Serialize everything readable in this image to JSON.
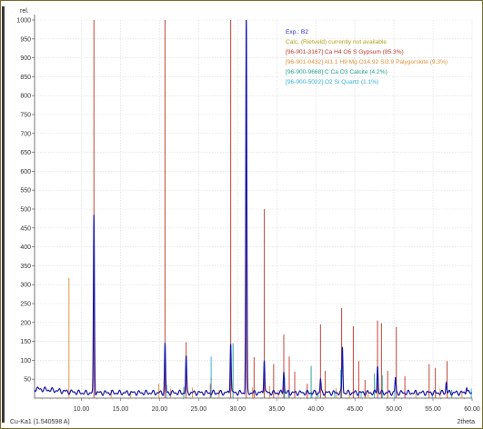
{
  "chart_data": {
    "type": "line",
    "ylabel": "rel.",
    "xlabel": "2theta",
    "footer": "Cu-Ka1 (1.540598 A)",
    "xlim": [
      4,
      60
    ],
    "ylim": [
      0,
      1000
    ],
    "x_ticks": [
      10,
      15,
      20,
      25,
      30,
      35,
      40,
      45,
      50,
      55,
      60
    ],
    "x_tick_labels": [
      "10.00",
      "15.00",
      "20.00",
      "25.00",
      "30.00",
      "35.00",
      "40.00",
      "45.00",
      "50.00",
      "55.00",
      "60.00"
    ],
    "y_ticks": [
      50,
      100,
      150,
      200,
      250,
      300,
      350,
      400,
      450,
      500,
      550,
      600,
      650,
      700,
      750,
      800,
      850,
      900,
      950,
      1000
    ],
    "y_tick_labels": [
      "50",
      "100",
      "150",
      "200",
      "250",
      "300",
      "350",
      "400",
      "450",
      "500",
      "550",
      "600",
      "650",
      "700",
      "750",
      "800",
      "850",
      "900",
      "950",
      "1000"
    ],
    "grid": true,
    "legend_position": "top-right",
    "legend": [
      {
        "text": "Exp.: B2",
        "color": "#2b2bd6"
      },
      {
        "text": "Calc. (Rietveld) currently not available",
        "color": "#b8a020"
      },
      {
        "text": "[96-901-3167] Ca H4 O6 S  Gypsum (85.3%)",
        "color": "#c0392b"
      },
      {
        "text": "[96-901-0432] Al1.1 H9 Mg O14.92 Si3.9  Palygorskite (9.3%)",
        "color": "#e0903a"
      },
      {
        "text": "[96-900-9668] C Ca O3  Calcite (4.2%)",
        "color": "#20a090"
      },
      {
        "text": "[96-900-5022] O2 Si  Quartz (1.1%)",
        "color": "#30b0d8"
      }
    ],
    "series": [
      {
        "name": "Exp.: B2",
        "color": "#1a1aa8",
        "peaks": [
          [
            11.6,
            468
          ],
          [
            20.7,
            128
          ],
          [
            23.4,
            95
          ],
          [
            29.1,
            135
          ],
          [
            31.1,
            1000
          ],
          [
            33.4,
            92
          ],
          [
            35.9,
            58
          ],
          [
            40.6,
            35
          ],
          [
            43.4,
            122
          ],
          [
            47.9,
            72
          ],
          [
            50.2,
            40
          ],
          [
            56.7,
            28
          ],
          [
            59.3,
            18
          ]
        ],
        "baseline": 14
      },
      {
        "name": "[96-901-3167] Ca H4 O6 S  Gypsum (85.3%)",
        "color": "#c0392b",
        "sticks": [
          [
            11.6,
            1000
          ],
          [
            20.7,
            1000
          ],
          [
            23.4,
            148
          ],
          [
            26.5,
            38
          ],
          [
            29.1,
            1000
          ],
          [
            31.1,
            1000
          ],
          [
            32.1,
            108
          ],
          [
            33.4,
            500
          ],
          [
            34.6,
            90
          ],
          [
            35.9,
            168
          ],
          [
            36.6,
            110
          ],
          [
            37.3,
            70
          ],
          [
            38.9,
            38
          ],
          [
            40.6,
            195
          ],
          [
            41.2,
            72
          ],
          [
            43.3,
            238
          ],
          [
            44.8,
            190
          ],
          [
            45.5,
            98
          ],
          [
            46.3,
            48
          ],
          [
            47.9,
            205
          ],
          [
            48.4,
            198
          ],
          [
            49.2,
            72
          ],
          [
            50.3,
            188
          ],
          [
            51.4,
            58
          ],
          [
            54.5,
            90
          ],
          [
            55.3,
            80
          ],
          [
            56.8,
            98
          ]
        ]
      },
      {
        "name": "[96-901-0432] Al1.1 H9 Mg O14.92 Si3.9  Palygorskite (9.3%)",
        "color": "#e0903a",
        "sticks": [
          [
            8.4,
            318
          ],
          [
            13.8,
            22
          ],
          [
            16.3,
            18
          ],
          [
            19.9,
            38
          ],
          [
            21.4,
            25
          ],
          [
            24.2,
            28
          ],
          [
            26.6,
            55
          ],
          [
            27.6,
            22
          ],
          [
            31.9,
            28
          ],
          [
            34.1,
            32
          ],
          [
            35.2,
            22
          ],
          [
            40.1,
            20
          ],
          [
            42.6,
            26
          ],
          [
            44.3,
            18
          ],
          [
            46.7,
            22
          ],
          [
            52.8,
            18
          ],
          [
            55.9,
            25
          ],
          [
            58.7,
            20
          ]
        ]
      },
      {
        "name": "[96-900-9668] C Ca O3  Calcite (4.2%)",
        "color": "#20a090",
        "sticks": [
          [
            23.1,
            30
          ],
          [
            29.4,
            145
          ],
          [
            36.0,
            55
          ],
          [
            39.4,
            85
          ],
          [
            43.2,
            75
          ],
          [
            47.5,
            65
          ],
          [
            48.5,
            60
          ],
          [
            57.4,
            22
          ]
        ]
      },
      {
        "name": "[96-900-5022] O2 Si  Quartz (1.1%)",
        "color": "#30b0d8",
        "sticks": [
          [
            20.9,
            35
          ],
          [
            26.6,
            110
          ],
          [
            36.5,
            22
          ],
          [
            39.5,
            18
          ],
          [
            40.3,
            15
          ],
          [
            42.4,
            20
          ],
          [
            45.8,
            15
          ],
          [
            50.1,
            30
          ],
          [
            54.9,
            15
          ],
          [
            59.9,
            25
          ]
        ]
      }
    ]
  }
}
